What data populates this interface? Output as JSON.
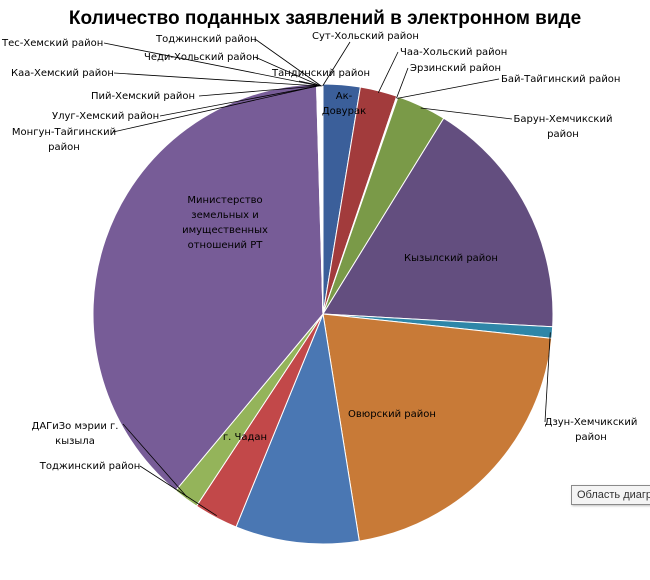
{
  "chart_data": {
    "type": "pie",
    "title": "Количество поданных заявлений в электронном виде",
    "slices": [
      {
        "label": "Ак-Довурак",
        "value": 2.6,
        "color": "#3b5f9a",
        "label_inside": true
      },
      {
        "label": "Чаа-Хольский район",
        "value": 2.6,
        "color": "#a23b3c",
        "label_inside": false
      },
      {
        "label": "Эрзинский район",
        "value": 0.05,
        "color": "#7d9a44",
        "label_inside": false
      },
      {
        "label": "Бай-Тайгинский район",
        "value": 0.05,
        "color": "#664c86",
        "label_inside": false
      },
      {
        "label": "Барун-Хемчикский район",
        "value": 3.5,
        "color": "#7a9a48",
        "label_inside": false
      },
      {
        "label": "Кызылский район",
        "value": 17.1,
        "color": "#634e7f",
        "label_inside": true
      },
      {
        "label": "Дзун-Хемчикский район",
        "value": 0.8,
        "color": "#2e86a8",
        "label_inside": false
      },
      {
        "label": "Овюрский район",
        "value": 20.8,
        "color": "#c87a37",
        "label_inside": true
      },
      {
        "label": "г. Чадан",
        "value": 8.7,
        "color": "#4a77b3",
        "label_inside": true
      },
      {
        "label": "Тоджинский район",
        "value": 3.1,
        "color": "#c24849",
        "label_inside": false
      },
      {
        "label": "ДАГиЗо мэрии г. кызыла",
        "value": 1.8,
        "color": "#94b45a",
        "label_inside": false
      },
      {
        "label": "Министерство земельных и имущественных отношений РТ",
        "value": 38.5,
        "color": "#775c97",
        "label_inside": true
      },
      {
        "label": "Монгун-Тайгинский район",
        "value": 0.05,
        "color": "#4a77b3",
        "label_inside": false
      },
      {
        "label": "Улуг-Хемский район",
        "value": 0.05,
        "color": "#b84647",
        "label_inside": false
      },
      {
        "label": "Пий-Хемский район",
        "value": 0.05,
        "color": "#8aaa52",
        "label_inside": false
      },
      {
        "label": "Каа-Хемский район",
        "value": 0.05,
        "color": "#755b95",
        "label_inside": false
      },
      {
        "label": "Тес-Хемский район",
        "value": 0.05,
        "color": "#3598b8",
        "label_inside": false
      },
      {
        "label": "Чеди-Хольский район",
        "value": 0.05,
        "color": "#d08a3e",
        "label_inside": false
      },
      {
        "label": "Тоджинский район",
        "value": 0.05,
        "color": "#3d6aa8",
        "label_inside": false
      },
      {
        "label": "Тандинский район",
        "value": 0.05,
        "color": "#b44142",
        "label_inside": false
      },
      {
        "label": "Сут-Хольский район",
        "value": 0.05,
        "color": "#86a84e",
        "label_inside": false
      }
    ],
    "legend": "none",
    "start_angle_deg": 0,
    "direction": "clockwise"
  },
  "tooltip": {
    "text": "Область диагр"
  }
}
